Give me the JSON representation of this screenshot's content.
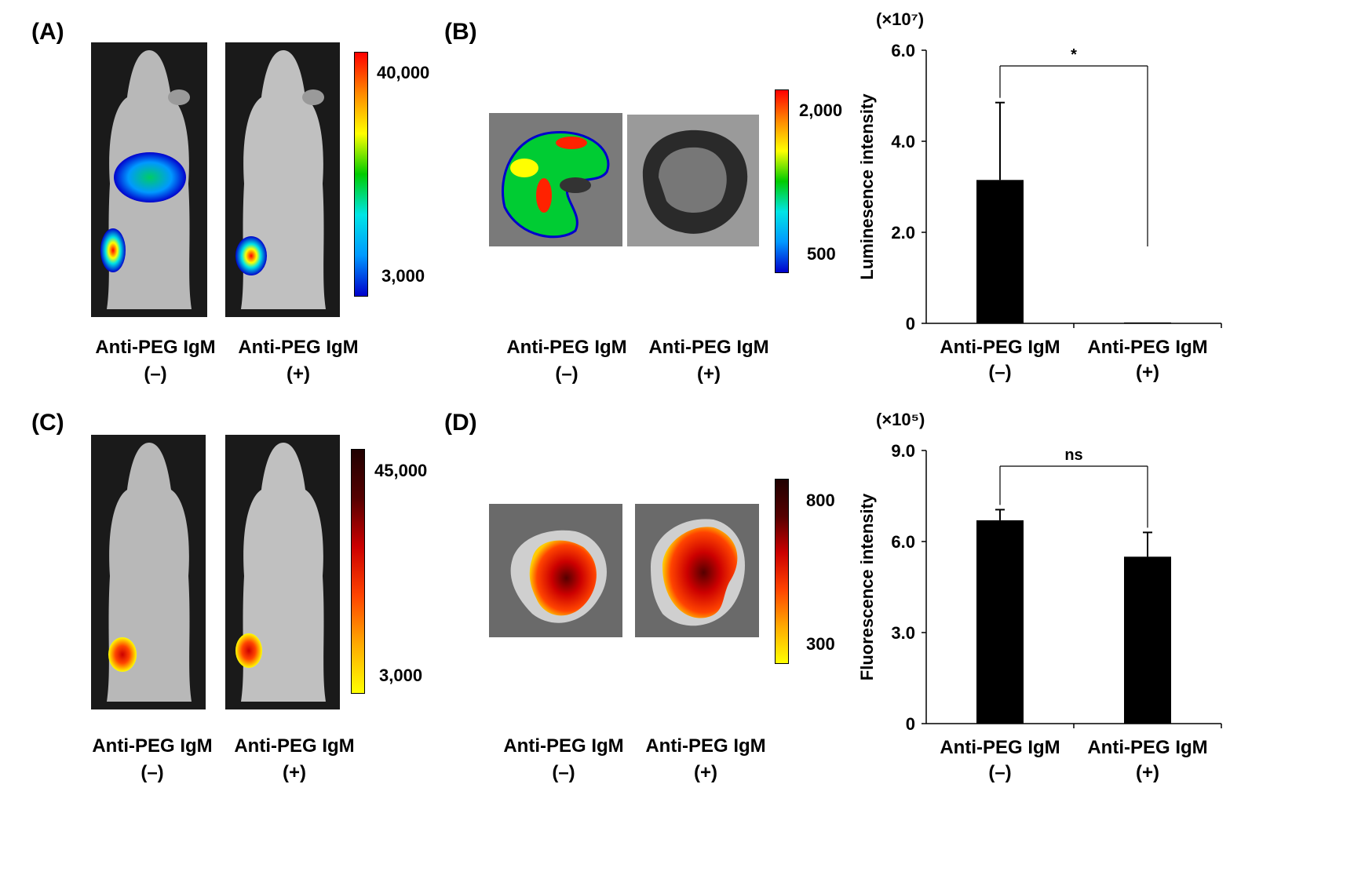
{
  "panels": {
    "a": {
      "label": "(A)",
      "scale_max": "40,000",
      "scale_min": "3,000"
    },
    "b": {
      "label": "(B)",
      "scale_max": "2,000",
      "scale_min": "500"
    },
    "c": {
      "label": "(C)",
      "scale_max": "45,000",
      "scale_min": "3,000"
    },
    "d": {
      "label": "(D)",
      "scale_max": "800",
      "scale_min": "300"
    }
  },
  "captions": {
    "name": "Anti-PEG IgM",
    "neg": "(–)",
    "pos": "(+)"
  },
  "colors": {
    "rainbow": [
      "#0000cc",
      "#0099ff",
      "#00e5e5",
      "#00cc00",
      "#ffff00",
      "#ff8800",
      "#ff0000"
    ],
    "heat": [
      "#ffff00",
      "#ffaa00",
      "#ff4400",
      "#cc0000",
      "#550000",
      "#200000"
    ],
    "bar": "#000000"
  },
  "chart_data": [
    {
      "type": "bar",
      "panel": "B",
      "multiplier": "(×10⁷)",
      "ylabel": "Luminesence intensity",
      "categories": [
        "Anti-PEG IgM (–)",
        "Anti-PEG IgM (+)"
      ],
      "values": [
        3.15,
        0.02
      ],
      "errors": [
        1.7,
        0.0
      ],
      "ylim": [
        0,
        6.0
      ],
      "yticks": [
        "0",
        "2.0",
        "4.0",
        "6.0"
      ],
      "significance": "*"
    },
    {
      "type": "bar",
      "panel": "D",
      "multiplier": "(×10⁵)",
      "ylabel": "Fluorescence intensity",
      "categories": [
        "Anti-PEG IgM (–)",
        "Anti-PEG IgM (+)"
      ],
      "values": [
        6.7,
        5.5
      ],
      "errors": [
        0.35,
        0.8
      ],
      "ylim": [
        0,
        9.0
      ],
      "yticks": [
        "0",
        "3.0",
        "6.0",
        "9.0"
      ],
      "significance": "ns"
    }
  ]
}
